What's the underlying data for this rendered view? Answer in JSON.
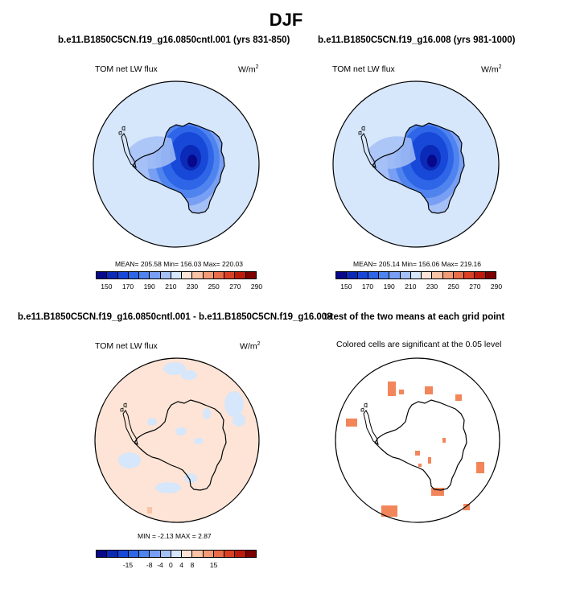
{
  "title": "DJF",
  "panels": [
    {
      "title": "b.e11.B1850C5CN.f19_g16.0850cntl.001 (yrs 831-850)",
      "variable": "TOM net LW flux",
      "units": "W/m",
      "units_sup": "2",
      "stats": "MEAN= 205.58  Min= 156.03  Max= 220.03",
      "colorbar": {
        "colors": [
          "#08088a",
          "#0b2ab8",
          "#1848d8",
          "#2f66e8",
          "#4f84ef",
          "#789ff3",
          "#a5c0f6",
          "#d6e6fb",
          "#fde4d6",
          "#f9c3a6",
          "#f39b76",
          "#e86d48",
          "#d94024",
          "#bd1a0c",
          "#7d0000"
        ],
        "labels": [
          "150",
          "170",
          "190",
          "210",
          "230",
          "250",
          "270",
          "290"
        ]
      }
    },
    {
      "title": "b.e11.B1850C5CN.f19_g16.008 (yrs 981-1000)",
      "variable": "TOM net LW flux",
      "units": "W/m",
      "units_sup": "2",
      "stats": "MEAN= 205.14  Min= 156.06  Max= 219.16",
      "colorbar": {
        "colors": [
          "#08088a",
          "#0b2ab8",
          "#1848d8",
          "#2f66e8",
          "#4f84ef",
          "#789ff3",
          "#a5c0f6",
          "#d6e6fb",
          "#fde4d6",
          "#f9c3a6",
          "#f39b76",
          "#e86d48",
          "#d94024",
          "#bd1a0c",
          "#7d0000"
        ],
        "labels": [
          "150",
          "170",
          "190",
          "210",
          "230",
          "250",
          "270",
          "290"
        ]
      }
    },
    {
      "title": "b.e11.B1850C5CN.f19_g16.0850cntl.001 - b.e11.B1850C5CN.f19_g16.008",
      "variable": "TOM net LW flux",
      "units": "W/m",
      "units_sup": "2",
      "stats": "MIN =  -2.13 MAX =   2.87",
      "colorbar": {
        "colors": [
          "#08088a",
          "#0b2ab8",
          "#1848d8",
          "#2f66e8",
          "#4f84ef",
          "#789ff3",
          "#a5c0f6",
          "#d6e6fb",
          "#fde4d6",
          "#f9c3a6",
          "#f39b76",
          "#e86d48",
          "#d94024",
          "#bd1a0c",
          "#7d0000"
        ],
        "labels": [
          "-15",
          "-8",
          "-4",
          "0",
          "4",
          "8",
          "15"
        ]
      }
    },
    {
      "title": "t-test of the two means at each grid point",
      "subtitle": "Colored cells are significant at the 0.05 level"
    }
  ],
  "colors": {
    "ocean_light_blue": "#d6e6fb",
    "ocean_light_orange": "#fde4d6",
    "significance_orange": "#f3855a"
  }
}
